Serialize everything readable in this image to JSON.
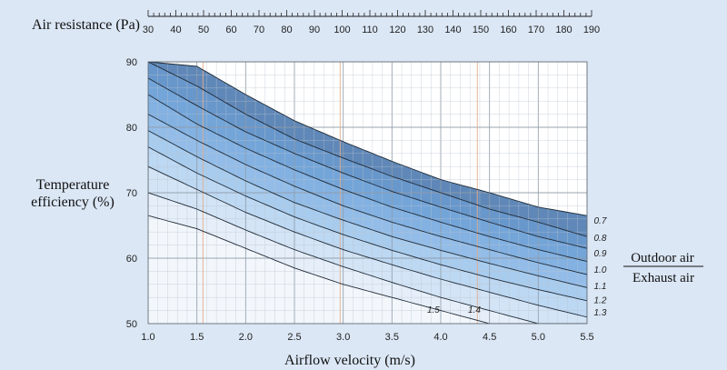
{
  "chart_data": {
    "type": "line",
    "title": "",
    "top_axis": {
      "label": "Air resistance (Pa)",
      "ticks": [
        30,
        40,
        50,
        60,
        70,
        80,
        90,
        100,
        110,
        120,
        130,
        140,
        150,
        160,
        170,
        180,
        190
      ]
    },
    "xlabel": "Airflow velocity (m/s)",
    "ylabel": "Temperature efficiency (%)",
    "xlim": [
      1.0,
      5.5
    ],
    "ylim": [
      50,
      90
    ],
    "x_ticks": [
      "1.0",
      "1.5",
      "2.0",
      "2.5",
      "3.0",
      "3.5",
      "4.0",
      "4.5",
      "5.0",
      "5.5"
    ],
    "y_ticks": [
      "50",
      "60",
      "70",
      "80",
      "90"
    ],
    "ratio_label": {
      "numerator": "Outdoor air",
      "denominator": "Exhaust  air"
    },
    "grid": true,
    "series": [
      {
        "name": "0.7",
        "x": [
          1.0,
          1.5,
          2.0,
          2.5,
          3.0,
          3.5,
          4.0,
          4.5,
          5.0,
          5.5
        ],
        "y": [
          90.0,
          89.3,
          85.0,
          81.0,
          77.8,
          74.8,
          72.0,
          70.0,
          67.8,
          66.5
        ]
      },
      {
        "name": "0.8",
        "x": [
          1.0,
          1.5,
          2.0,
          2.5,
          3.0,
          3.5,
          4.0,
          4.5,
          5.0,
          5.5
        ],
        "y": [
          90.0,
          86.3,
          82.0,
          78.2,
          75.3,
          72.5,
          70.0,
          67.5,
          65.5,
          63.3
        ]
      },
      {
        "name": "0.9",
        "x": [
          1.0,
          1.5,
          2.0,
          2.5,
          3.0,
          3.5,
          4.0,
          4.5,
          5.0,
          5.5
        ],
        "y": [
          87.5,
          83.3,
          79.3,
          76.0,
          73.0,
          70.2,
          67.8,
          65.5,
          63.3,
          61.5
        ]
      },
      {
        "name": "1.0",
        "x": [
          1.0,
          1.5,
          2.0,
          2.5,
          3.0,
          3.5,
          4.0,
          4.5,
          5.0,
          5.5
        ],
        "y": [
          85.0,
          80.5,
          76.8,
          73.5,
          70.5,
          67.8,
          65.5,
          63.3,
          61.3,
          59.5
        ]
      },
      {
        "name": "1.1",
        "x": [
          1.0,
          1.5,
          2.0,
          2.5,
          3.0,
          3.5,
          4.0,
          4.5,
          5.0,
          5.5
        ],
        "y": [
          82.0,
          78.0,
          74.3,
          71.0,
          68.0,
          65.5,
          63.3,
          61.3,
          59.3,
          57.5
        ]
      },
      {
        "name": "1.2",
        "x": [
          1.0,
          1.5,
          2.0,
          2.5,
          3.0,
          3.5,
          4.0,
          4.5,
          5.0,
          5.5
        ],
        "y": [
          79.5,
          75.5,
          71.8,
          68.5,
          65.8,
          63.3,
          61.2,
          59.2,
          57.3,
          55.5
        ]
      },
      {
        "name": "1.3",
        "x": [
          1.0,
          1.5,
          2.0,
          2.5,
          3.0,
          3.5,
          4.0,
          4.5,
          5.0,
          5.5
        ],
        "y": [
          77.0,
          73.0,
          69.5,
          66.3,
          63.6,
          61.2,
          59.0,
          57.0,
          55.2,
          53.5
        ]
      },
      {
        "name": "1.4",
        "x": [
          1.0,
          1.5,
          2.0,
          2.5,
          3.0,
          3.5,
          4.0,
          4.5,
          5.0,
          5.5
        ],
        "y": [
          74.0,
          70.5,
          67.0,
          64.0,
          61.3,
          59.0,
          56.8,
          54.8,
          52.8,
          51.0
        ]
      },
      {
        "name": "1.5",
        "x": [
          1.0,
          1.5,
          2.0,
          2.5,
          3.0,
          3.5,
          4.0,
          4.5,
          5.0,
          5.5
        ],
        "y": [
          70.0,
          67.5,
          64.3,
          61.3,
          58.7,
          56.3,
          54.0,
          52.0,
          50.0,
          50.0
        ]
      },
      {
        "name": "",
        "x": [
          1.0,
          1.5,
          2.0,
          2.5,
          3.0,
          3.5,
          4.0,
          4.5
        ],
        "y": [
          66.5,
          64.5,
          61.5,
          58.5,
          56.0,
          54.0,
          52.0,
          50.0
        ]
      }
    ],
    "curve_labels": [
      {
        "text": "0.7",
        "x": 5.57,
        "y": 65.8
      },
      {
        "text": "0.8",
        "x": 5.57,
        "y": 63.2
      },
      {
        "text": "0.9",
        "x": 5.57,
        "y": 60.8
      },
      {
        "text": "1.0",
        "x": 5.57,
        "y": 58.3
      },
      {
        "text": "1.1",
        "x": 5.57,
        "y": 55.8
      },
      {
        "text": "1.2",
        "x": 5.57,
        "y": 53.7
      },
      {
        "text": "1.3",
        "x": 5.57,
        "y": 51.8
      },
      {
        "text": "1.4",
        "x": 4.28,
        "y": 52.2
      },
      {
        "text": "1.5",
        "x": 3.86,
        "y": 52.2
      }
    ],
    "colors": {
      "background": "#dbe7f5",
      "grid": "#b9c3ce",
      "grid_highlight": "#e1ad8c",
      "grid_major": "#8f9ba8",
      "curve": "#1f2a36",
      "bands": [
        "#5f88b8",
        "#6897cb",
        "#73a5d9",
        "#82b1e2",
        "#93bde8",
        "#a8ccee",
        "#bdd8f2",
        "#d3e4f6",
        "#e6eff9",
        "#f3f7fc"
      ]
    }
  }
}
